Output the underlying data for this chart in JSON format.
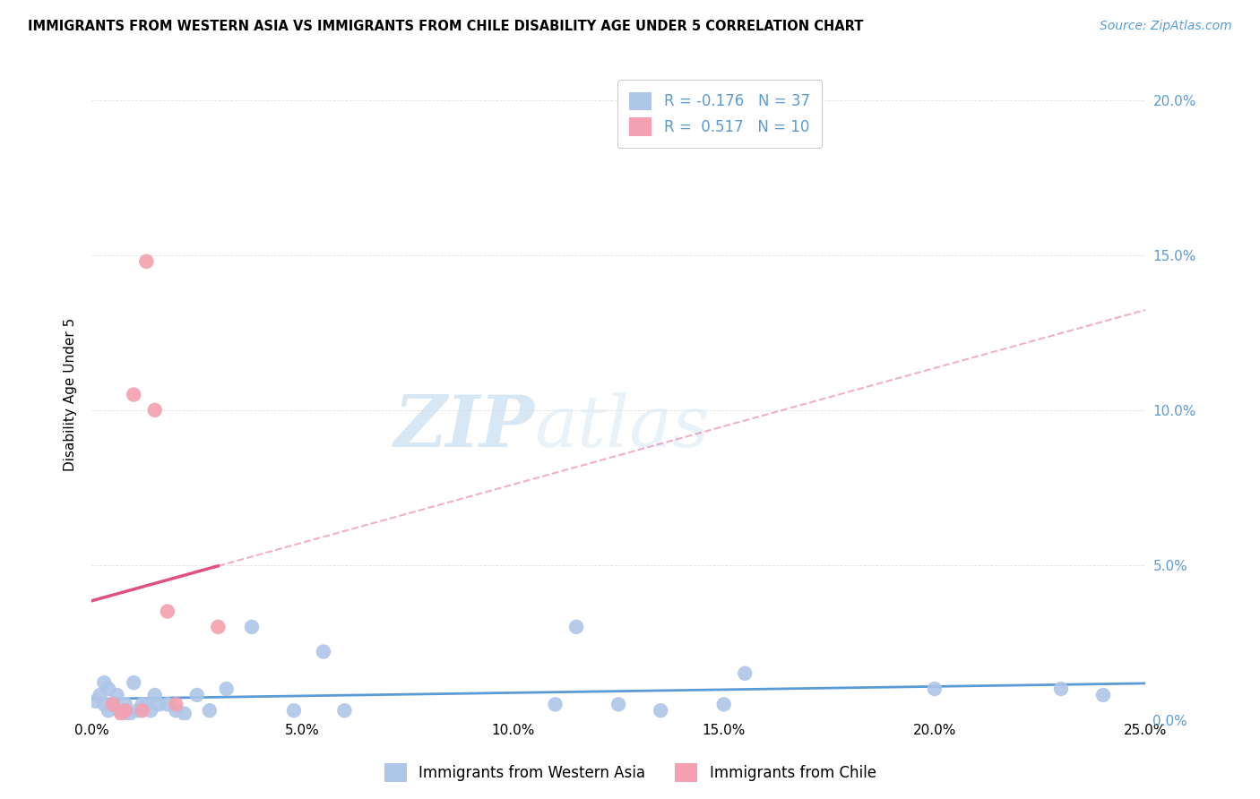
{
  "title": "IMMIGRANTS FROM WESTERN ASIA VS IMMIGRANTS FROM CHILE DISABILITY AGE UNDER 5 CORRELATION CHART",
  "source": "Source: ZipAtlas.com",
  "xlim": [
    0.0,
    0.25
  ],
  "ylim": [
    0.0,
    0.21
  ],
  "western_asia_x": [
    0.001,
    0.002,
    0.003,
    0.003,
    0.004,
    0.004,
    0.005,
    0.006,
    0.007,
    0.008,
    0.009,
    0.01,
    0.011,
    0.012,
    0.013,
    0.014,
    0.015,
    0.016,
    0.018,
    0.02,
    0.022,
    0.025,
    0.028,
    0.032,
    0.038,
    0.048,
    0.055,
    0.06,
    0.11,
    0.115,
    0.125,
    0.135,
    0.15,
    0.155,
    0.2,
    0.23,
    0.24
  ],
  "western_asia_y": [
    0.006,
    0.008,
    0.005,
    0.012,
    0.003,
    0.01,
    0.005,
    0.008,
    0.003,
    0.005,
    0.002,
    0.012,
    0.003,
    0.005,
    0.005,
    0.003,
    0.008,
    0.005,
    0.005,
    0.003,
    0.002,
    0.008,
    0.003,
    0.01,
    0.03,
    0.003,
    0.022,
    0.003,
    0.005,
    0.03,
    0.005,
    0.003,
    0.005,
    0.015,
    0.01,
    0.01,
    0.008
  ],
  "chile_x": [
    0.005,
    0.007,
    0.008,
    0.01,
    0.012,
    0.013,
    0.015,
    0.018,
    0.02,
    0.03
  ],
  "chile_y": [
    0.005,
    0.002,
    0.003,
    0.105,
    0.003,
    0.148,
    0.1,
    0.035,
    0.005,
    0.03
  ],
  "western_asia_color": "#aec6e8",
  "chile_color": "#f4a0b0",
  "western_asia_line_color": "#5b9bd5",
  "chile_line_color": "#e05080",
  "r_western_asia": -0.176,
  "n_western_asia": 37,
  "r_chile": 0.517,
  "n_chile": 10,
  "watermark_zip": "ZIP",
  "watermark_atlas": "atlas",
  "legend_label_1": "Immigrants from Western Asia",
  "legend_label_2": "Immigrants from Chile",
  "ylabel": "Disability Age Under 5"
}
